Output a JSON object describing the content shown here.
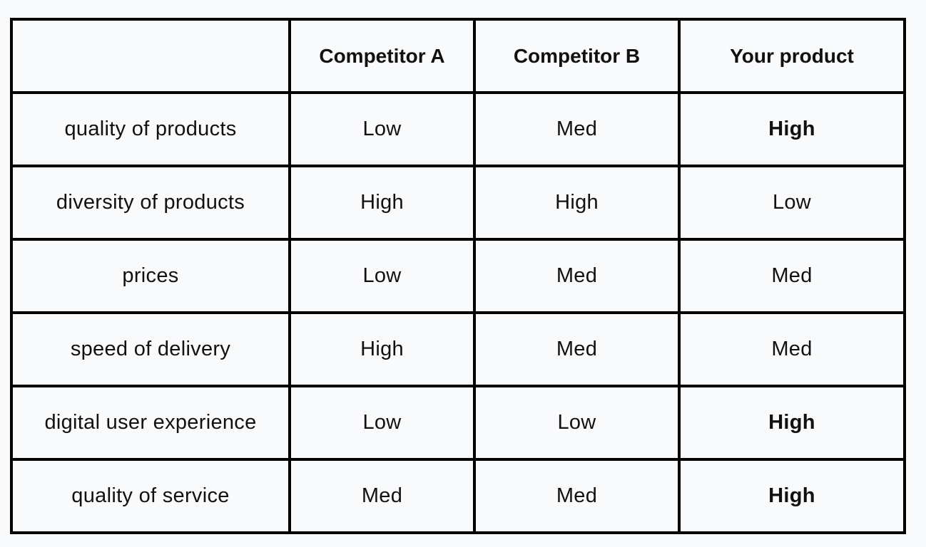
{
  "table": {
    "headers": [
      "",
      "Competitor A",
      "Competitor B",
      "Your product"
    ],
    "rows": [
      {
        "label": "quality of products",
        "values": [
          "Low",
          "Med",
          "High"
        ],
        "emphasis": [
          false,
          false,
          true
        ]
      },
      {
        "label": "diversity of products",
        "values": [
          "High",
          "High",
          "Low"
        ],
        "emphasis": [
          false,
          false,
          false
        ]
      },
      {
        "label": "prices",
        "values": [
          "Low",
          "Med",
          "Med"
        ],
        "emphasis": [
          false,
          false,
          false
        ]
      },
      {
        "label": "speed of delivery",
        "values": [
          "High",
          "Med",
          "Med"
        ],
        "emphasis": [
          false,
          false,
          false
        ]
      },
      {
        "label": "digital user experience",
        "values": [
          "Low",
          "Low",
          "High"
        ],
        "emphasis": [
          false,
          false,
          true
        ]
      },
      {
        "label": "quality of service",
        "values": [
          "Med",
          "Med",
          "High"
        ],
        "emphasis": [
          false,
          false,
          true
        ]
      }
    ]
  },
  "colors": {
    "background": "#f9fafc",
    "border": "#000000",
    "text": "#111111"
  }
}
